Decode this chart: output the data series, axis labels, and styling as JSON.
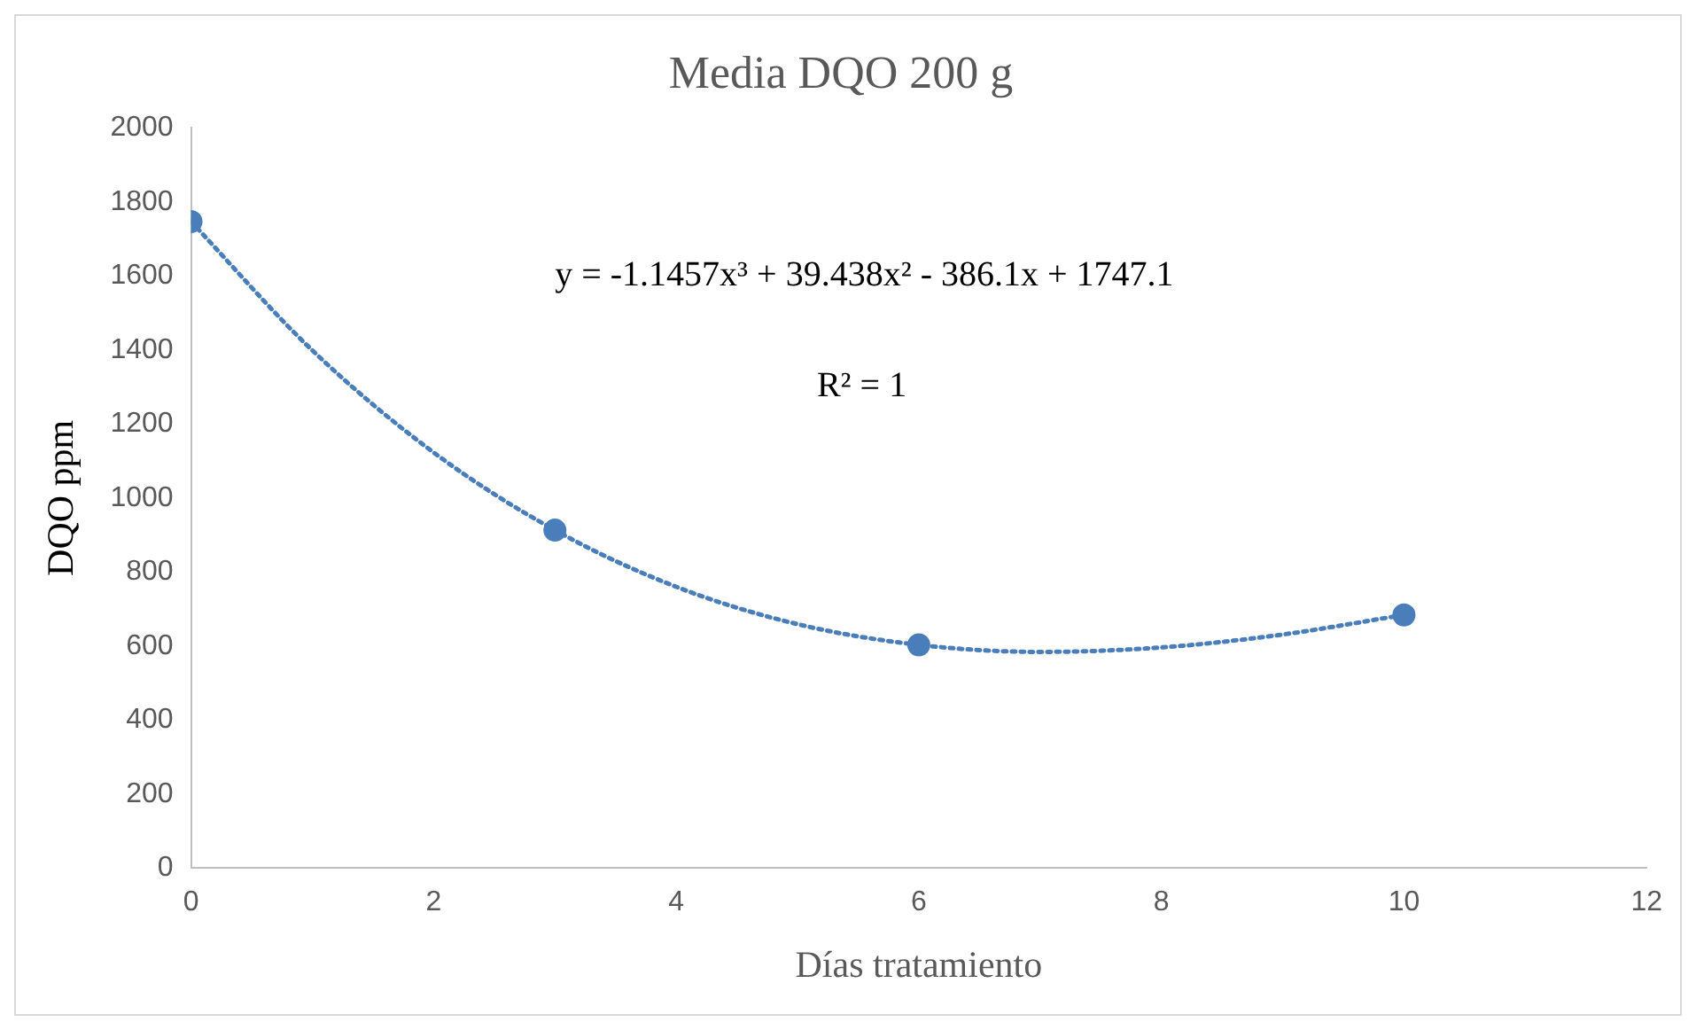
{
  "chart_data": {
    "type": "scatter",
    "title": "Media DQO 200 g",
    "xlabel": "Días tratamiento",
    "ylabel": "DQO ppm",
    "xlim": [
      0,
      12
    ],
    "xticks": [
      0,
      2,
      4,
      6,
      8,
      10,
      12
    ],
    "ylim": [
      0,
      2000
    ],
    "yticks": [
      0,
      200,
      400,
      600,
      800,
      1000,
      1200,
      1400,
      1600,
      1800,
      2000
    ],
    "grid": false,
    "legend": false,
    "series": [
      {
        "type": "scatter",
        "color": "#4a7ebb",
        "marker": "circle",
        "x": [
          0,
          3,
          6,
          10
        ],
        "values": [
          1747,
          913,
          603,
          684
        ]
      },
      {
        "type": "line",
        "color": "#4a7ebb",
        "marker": "none",
        "line_style": "dotted",
        "x": [
          0,
          1,
          2,
          3,
          4,
          5,
          6,
          7,
          8,
          9,
          10
        ],
        "values": [
          1747,
          1399,
          1123,
          913,
          760,
          659,
          603,
          584,
          596,
          631,
          684
        ]
      }
    ],
    "annotations": [
      "y = -1.1457x³ + 39.438x² - 386.1x + 1747.1",
      "R² = 1"
    ]
  }
}
